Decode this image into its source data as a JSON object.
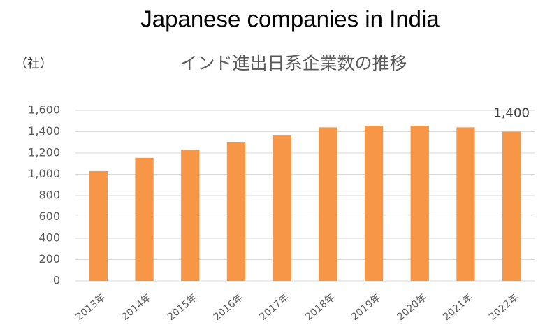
{
  "chart_data": {
    "type": "bar",
    "title": "Japanese companies in India",
    "subtitle": "インド進出日系企業数の推移",
    "y_label": "（社）",
    "categories": [
      "2013年",
      "2014年",
      "2015年",
      "2016年",
      "2017年",
      "2018年",
      "2019年",
      "2020年",
      "2021年",
      "2022年"
    ],
    "values": [
      1030,
      1155,
      1230,
      1305,
      1370,
      1440,
      1455,
      1455,
      1440,
      1400
    ],
    "value_labels": [
      null,
      null,
      null,
      null,
      null,
      null,
      null,
      null,
      null,
      "1,400"
    ],
    "color": "#f79646",
    "ylim": [
      0,
      1600
    ],
    "yticks": [
      0,
      200,
      400,
      600,
      800,
      {
        "value": 1000,
        "label": "1,000"
      },
      {
        "value": 1200,
        "label": "1,200"
      },
      {
        "value": 1400,
        "label": "1,400"
      },
      {
        "value": 1600,
        "label": "1,600"
      }
    ],
    "grid": true
  }
}
